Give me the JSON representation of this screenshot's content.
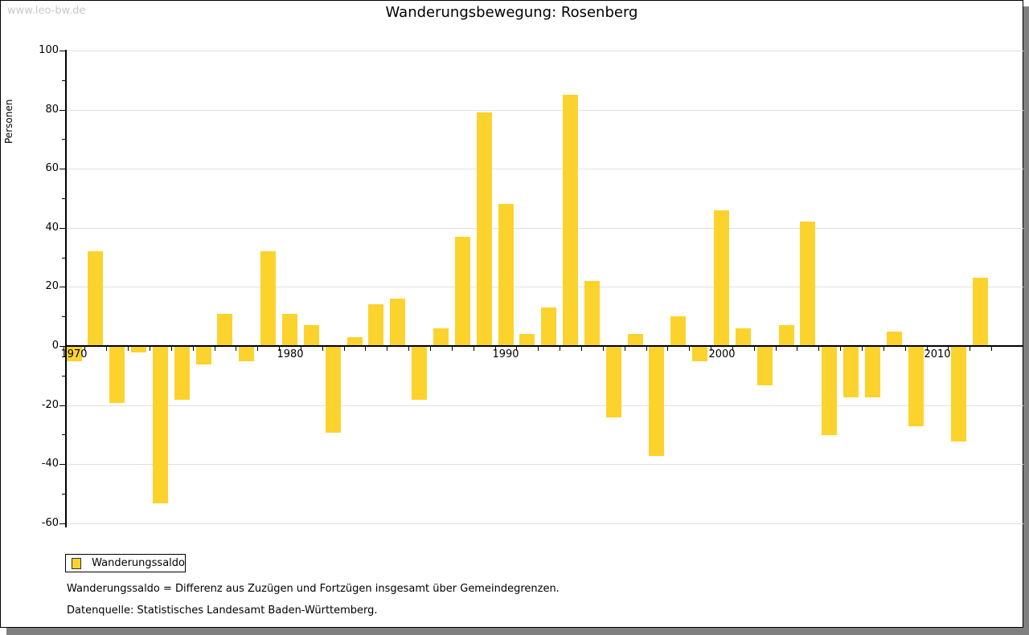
{
  "page": {
    "watermark": "www.leo-bw.de"
  },
  "chart_data": {
    "type": "bar",
    "title": "Wanderungsbewegung: Rosenberg",
    "ylabel": "Personen",
    "series_name": "Wanderungssaldo",
    "bar_color": "#FCD32C",
    "grid": true,
    "legend_position": "bottom-left",
    "ylim": [
      -60,
      100
    ],
    "ytick_interval": 20,
    "ytick_labels": [
      "-60",
      "-40",
      "-20",
      "0",
      "20",
      "40",
      "60",
      "80",
      "100"
    ],
    "xtick_labels": [
      "1970",
      "1980",
      "1990",
      "2000",
      "2010"
    ],
    "x": [
      1970,
      1971,
      1972,
      1973,
      1974,
      1975,
      1976,
      1977,
      1978,
      1979,
      1980,
      1981,
      1982,
      1983,
      1984,
      1985,
      1986,
      1987,
      1988,
      1989,
      1990,
      1991,
      1992,
      1993,
      1994,
      1995,
      1996,
      1997,
      1998,
      1999,
      2000,
      2001,
      2002,
      2003,
      2004,
      2005,
      2006,
      2007,
      2008,
      2009,
      2010,
      2011,
      2012
    ],
    "values": [
      -5,
      32,
      -19,
      -2,
      -53,
      -18,
      -6,
      11,
      -5,
      32,
      11,
      7,
      -29,
      3,
      14,
      16,
      -18,
      6,
      37,
      79,
      48,
      4,
      13,
      85,
      22,
      -24,
      4,
      -37,
      10,
      -5,
      46,
      6,
      -13,
      7,
      42,
      -30,
      -17,
      -17,
      5,
      -27,
      0,
      -32,
      23
    ]
  },
  "legend": {
    "label": "Wanderungssaldo"
  },
  "footnotes": {
    "line1": "Wanderungssaldo = Differenz aus Zuzügen und Fortzügen insgesamt über Gemeindegrenzen.",
    "line2": "Datenquelle: Statistisches Landesamt Baden-Württemberg."
  }
}
